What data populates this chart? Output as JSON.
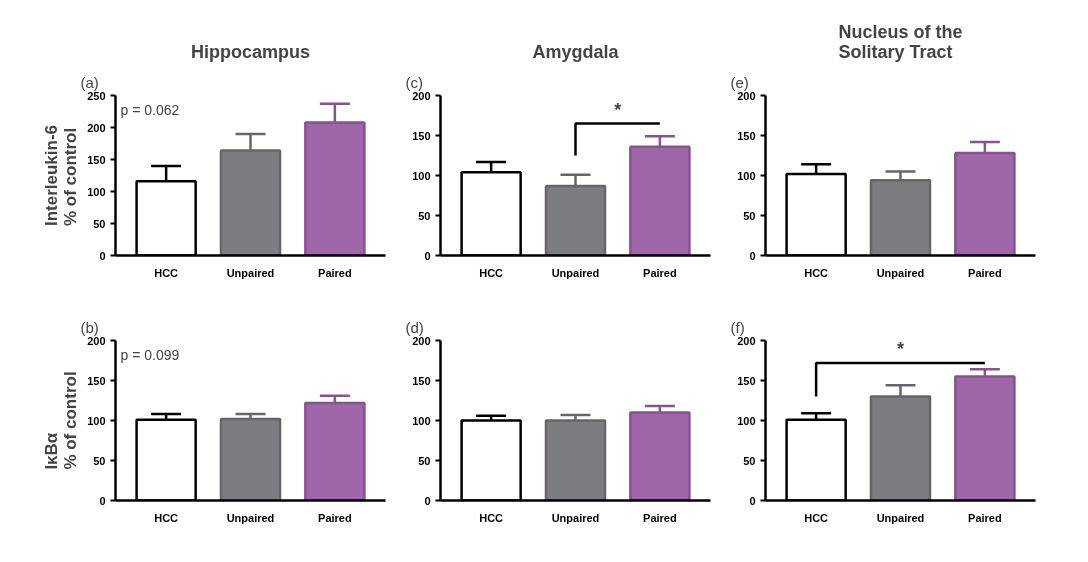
{
  "chart_data": [
    {
      "type": "bar",
      "title": "Hippocampus",
      "subtitle": "(a)",
      "ylabel": "Interleukin-6\n% of control",
      "categories": [
        "HCC",
        "Unpaired",
        "Paired"
      ],
      "values": [
        116,
        164,
        208
      ],
      "errors": [
        [
          116,
          140
        ],
        [
          164,
          190
        ],
        [
          208,
          237
        ]
      ],
      "colors": [
        "#ffffff",
        "#7b7d80",
        "#a066aa"
      ],
      "ylim": [
        0,
        250
      ],
      "yticks": [
        0,
        50,
        100,
        150,
        200,
        250
      ],
      "grid": false,
      "annotations": [
        "p = 0.062"
      ]
    },
    {
      "type": "bar",
      "title": "Amygdala",
      "subtitle": "(c)",
      "categories": [
        "HCC",
        "Unpaired",
        "Paired"
      ],
      "values": [
        104,
        87,
        136
      ],
      "errors": [
        [
          104,
          117
        ],
        [
          87,
          101
        ],
        [
          136,
          149
        ]
      ],
      "colors": [
        "#ffffff",
        "#7b7d80",
        "#a066aa"
      ],
      "ylim": [
        0,
        200
      ],
      "yticks": [
        0,
        50,
        100,
        150,
        200
      ],
      "grid": false,
      "annotations": [
        "*"
      ]
    },
    {
      "type": "bar",
      "title": "Nucleus of the\nSolitary Tract",
      "subtitle": "(e)",
      "categories": [
        "HCC",
        "Unpaired",
        "Paired"
      ],
      "values": [
        102,
        94,
        128
      ],
      "errors": [
        [
          102,
          114
        ],
        [
          94,
          105
        ],
        [
          128,
          142
        ]
      ],
      "colors": [
        "#ffffff",
        "#7b7d80",
        "#a066aa"
      ],
      "ylim": [
        0,
        200
      ],
      "yticks": [
        0,
        50,
        100,
        150,
        200
      ],
      "grid": false
    },
    {
      "type": "bar",
      "subtitle": "(b)",
      "ylabel": "IκBα\n% of control",
      "categories": [
        "HCC",
        "Unpaired",
        "Paired"
      ],
      "values": [
        101,
        102,
        122
      ],
      "errors": [
        [
          101,
          108
        ],
        [
          102,
          108
        ],
        [
          122,
          131
        ]
      ],
      "colors": [
        "#ffffff",
        "#7b7d80",
        "#a066aa"
      ],
      "ylim": [
        0,
        200
      ],
      "yticks": [
        0,
        50,
        100,
        150,
        200
      ],
      "grid": false,
      "annotations": [
        "p = 0.099"
      ]
    },
    {
      "type": "bar",
      "subtitle": "(d)",
      "categories": [
        "HCC",
        "Unpaired",
        "Paired"
      ],
      "values": [
        100,
        100,
        110
      ],
      "errors": [
        [
          100,
          106
        ],
        [
          100,
          107
        ],
        [
          110,
          118
        ]
      ],
      "colors": [
        "#ffffff",
        "#7b7d80",
        "#a066aa"
      ],
      "ylim": [
        0,
        200
      ],
      "yticks": [
        0,
        50,
        100,
        150,
        200
      ],
      "grid": false
    },
    {
      "type": "bar",
      "subtitle": "(f)",
      "categories": [
        "HCC",
        "Unpaired",
        "Paired"
      ],
      "values": [
        101,
        130,
        155
      ],
      "errors": [
        [
          101,
          109
        ],
        [
          130,
          144
        ],
        [
          155,
          164
        ]
      ],
      "colors": [
        "#ffffff",
        "#7b7d80",
        "#a066aa"
      ],
      "ylim": [
        0,
        200
      ],
      "yticks": [
        0,
        50,
        100,
        150,
        200
      ],
      "grid": false,
      "annotations": [
        "*"
      ]
    }
  ]
}
